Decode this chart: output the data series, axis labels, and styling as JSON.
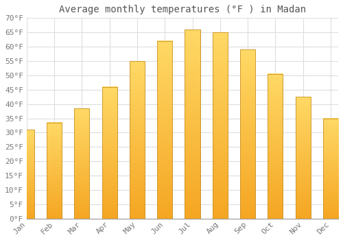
{
  "title": "Average monthly temperatures (°F ) in Madan",
  "months": [
    "Jan",
    "Feb",
    "Mar",
    "Apr",
    "May",
    "Jun",
    "Jul",
    "Aug",
    "Sep",
    "Oct",
    "Nov",
    "Dec"
  ],
  "values": [
    31,
    33.5,
    38.5,
    46,
    55,
    62,
    66,
    65,
    59,
    50.5,
    42.5,
    35
  ],
  "bar_color_top": "#FFD966",
  "bar_color_bottom": "#F5A623",
  "bar_edge_color": "#C8922A",
  "ylim": [
    0,
    70
  ],
  "yticks": [
    0,
    5,
    10,
    15,
    20,
    25,
    30,
    35,
    40,
    45,
    50,
    55,
    60,
    65,
    70
  ],
  "ytick_labels": [
    "0°F",
    "5°F",
    "10°F",
    "15°F",
    "20°F",
    "25°F",
    "30°F",
    "35°F",
    "40°F",
    "45°F",
    "50°F",
    "55°F",
    "60°F",
    "65°F",
    "70°F"
  ],
  "title_fontsize": 10,
  "tick_fontsize": 8,
  "background_color": "#ffffff",
  "grid_color": "#dddddd",
  "font_family": "monospace",
  "bar_width": 0.55
}
